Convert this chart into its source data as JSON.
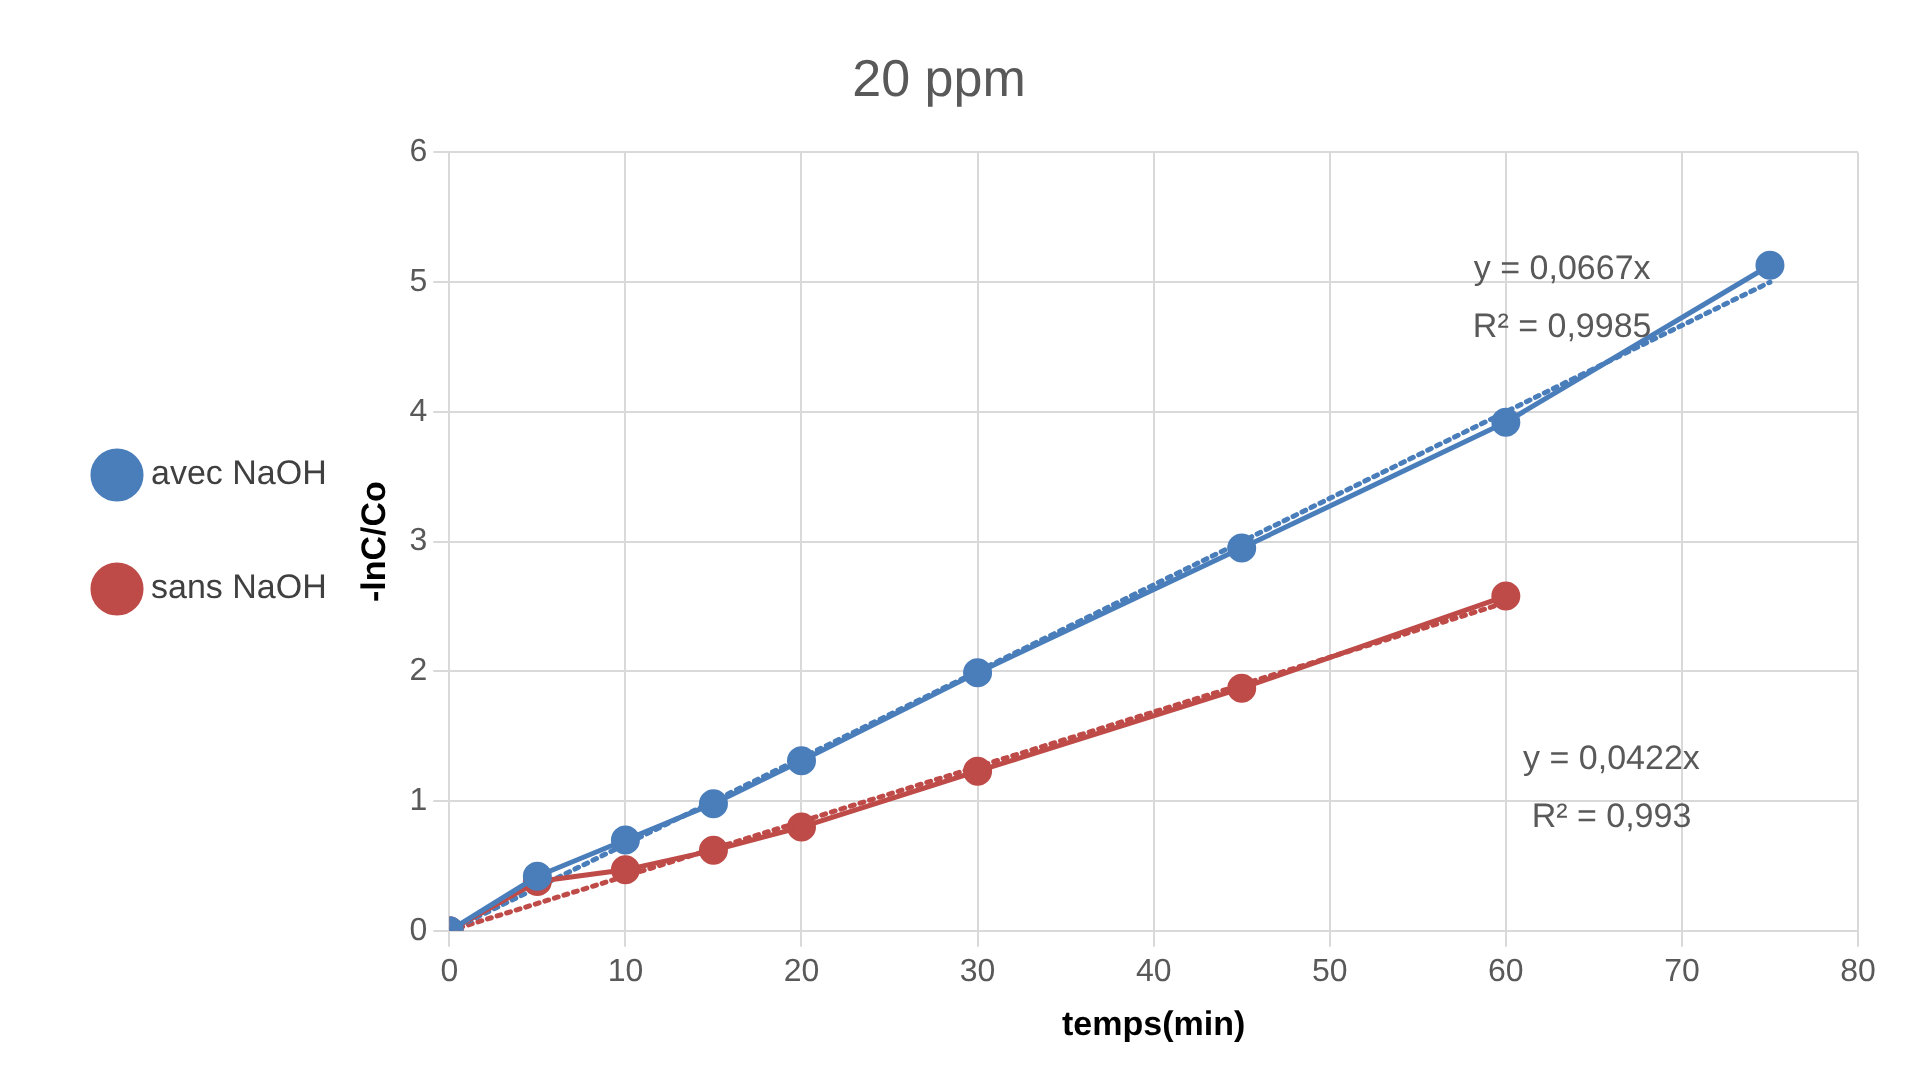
{
  "chart_data": {
    "type": "line",
    "title": "20 ppm",
    "xlabel": "temps(min)",
    "ylabel": "-lnC/Co",
    "x": [
      0,
      5,
      10,
      15,
      20,
      30,
      45,
      60,
      75
    ],
    "series": [
      {
        "name": "avec NaOH",
        "color": "#4a7ebb",
        "values": [
          0,
          0.42,
          0.7,
          0.98,
          1.31,
          1.99,
          2.95,
          3.92,
          5.13
        ]
      },
      {
        "name": "sans NaOH",
        "color": "#be4b48",
        "values": [
          0,
          0.38,
          0.47,
          0.62,
          0.8,
          1.23,
          1.87,
          2.58,
          null
        ]
      },
      {
        "type": "line",
        "color": "#4a7ebb",
        "x": [
          0,
          75
        ],
        "values": [
          0,
          5.0
        ],
        "line_style": "dotted",
        "marker": "none"
      },
      {
        "type": "line",
        "color": "#be4b48",
        "x": [
          0,
          60
        ],
        "values": [
          0,
          2.53
        ],
        "line_style": "dotted",
        "marker": "none"
      }
    ],
    "annotations": [
      "y = 0,0667x",
      "R² = 0,9985",
      "y = 0,0422x",
      "R² = 0,993"
    ],
    "xlim": [
      0,
      80
    ],
    "xticks": [
      0,
      10,
      20,
      30,
      40,
      50,
      60,
      70,
      80
    ],
    "ylim": [
      0,
      6
    ],
    "yticks": [
      0,
      1,
      2,
      3,
      4,
      5,
      6
    ],
    "grid": true,
    "legend": "left",
    "marker": "circle",
    "line_style": "solid"
  }
}
